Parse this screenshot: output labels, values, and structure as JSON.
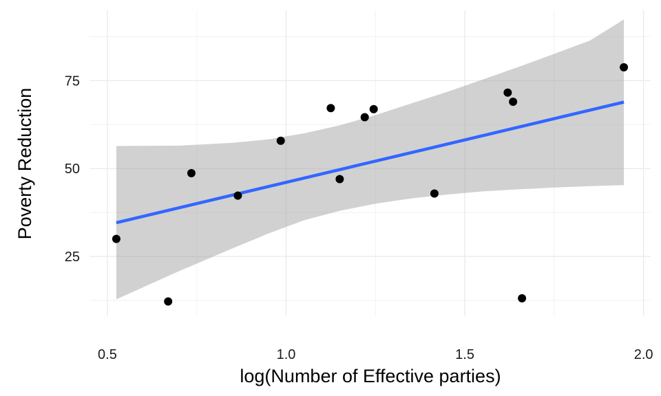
{
  "chart_data": {
    "type": "scatter",
    "title": "",
    "xlabel": "log(Number of Effective parties)",
    "ylabel": "Poverty Reduction",
    "xlim": [
      0.45,
      2.02
    ],
    "ylim": [
      8,
      95
    ],
    "x_ticks": [
      0.5,
      1.0,
      1.5,
      2.0
    ],
    "x_tick_labels": [
      "0.5",
      "1.0",
      "1.5",
      "2.0"
    ],
    "y_ticks": [
      25,
      50,
      75
    ],
    "y_tick_labels": [
      "25",
      "50",
      "75"
    ],
    "grid": true,
    "legend": "none",
    "points": [
      {
        "x": 0.525,
        "y": 30.0
      },
      {
        "x": 0.67,
        "y": 12.2
      },
      {
        "x": 0.735,
        "y": 48.7
      },
      {
        "x": 0.865,
        "y": 42.3
      },
      {
        "x": 0.985,
        "y": 57.9
      },
      {
        "x": 1.125,
        "y": 67.2
      },
      {
        "x": 1.15,
        "y": 47.0
      },
      {
        "x": 1.22,
        "y": 64.6
      },
      {
        "x": 1.245,
        "y": 66.9
      },
      {
        "x": 1.415,
        "y": 42.9
      },
      {
        "x": 1.62,
        "y": 71.6
      },
      {
        "x": 1.635,
        "y": 69.0
      },
      {
        "x": 1.66,
        "y": 13.1
      },
      {
        "x": 1.945,
        "y": 78.8
      }
    ],
    "fit_line": {
      "x": [
        0.525,
        1.945
      ],
      "y": [
        34.6,
        68.9
      ]
    },
    "confidence_band": {
      "x": [
        0.525,
        0.7,
        0.85,
        0.95,
        1.05,
        1.15,
        1.25,
        1.35,
        1.45,
        1.55,
        1.65,
        1.75,
        1.85,
        1.945
      ],
      "upper": [
        56.4,
        56.5,
        57.3,
        58.3,
        60.0,
        62.3,
        65.2,
        68.5,
        71.8,
        75.3,
        78.9,
        82.6,
        86.4,
        92.4
      ],
      "lower": [
        12.8,
        20.8,
        27.3,
        31.5,
        35.3,
        38.0,
        40.0,
        41.5,
        42.6,
        43.5,
        44.1,
        44.6,
        45.0,
        45.3
      ]
    },
    "colors": {
      "point": "#000000",
      "line": "#3366ff",
      "band": "#999999",
      "grid": "#ebebeb"
    }
  }
}
